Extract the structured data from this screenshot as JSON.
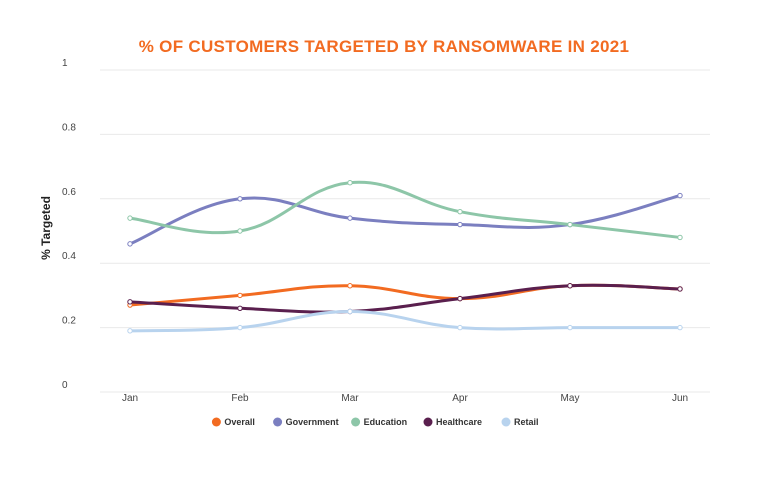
{
  "chart_data": {
    "type": "line",
    "title": "% OF CUSTOMERS TARGETED BY RANSOMWARE IN 2021",
    "xlabel": "",
    "ylabel": "% Targeted",
    "categories": [
      "Jan",
      "Feb",
      "Mar",
      "Apr",
      "May",
      "Jun"
    ],
    "ylim": [
      0,
      1
    ],
    "yticks": [
      "0",
      "0.2",
      "0.4",
      "0.6",
      "0.8",
      "1"
    ],
    "grid": true,
    "legend_position": "bottom",
    "smooth": true,
    "series": [
      {
        "name": "Overall",
        "color": "#f26b21",
        "values": [
          0.27,
          0.3,
          0.33,
          0.29,
          0.33,
          0.32
        ]
      },
      {
        "name": "Government",
        "color": "#7b7fc0",
        "values": [
          0.46,
          0.6,
          0.54,
          0.52,
          0.52,
          0.61
        ]
      },
      {
        "name": "Education",
        "color": "#8dc6a8",
        "values": [
          0.54,
          0.5,
          0.65,
          0.56,
          0.52,
          0.48
        ]
      },
      {
        "name": "Healthcare",
        "color": "#5a1f4e",
        "values": [
          0.28,
          0.26,
          0.25,
          0.29,
          0.33,
          0.32
        ]
      },
      {
        "name": "Retail",
        "color": "#b8d3ee",
        "values": [
          0.19,
          0.2,
          0.25,
          0.2,
          0.2,
          0.2
        ]
      }
    ]
  }
}
